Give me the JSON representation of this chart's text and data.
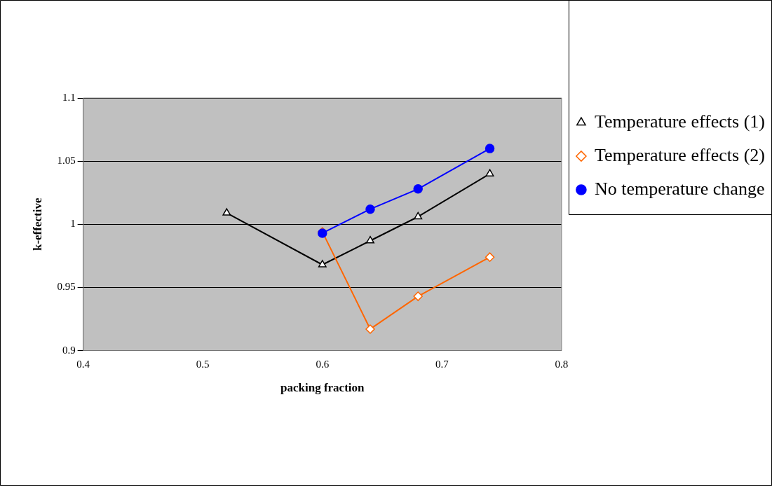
{
  "chart_data": {
    "type": "line",
    "xlabel": "packing fraction",
    "ylabel": "k-effective",
    "xlim": [
      0.4,
      0.8
    ],
    "xticks": [
      0.4,
      0.5,
      0.6,
      0.7,
      0.8
    ],
    "ylim": [
      0.9,
      1.1
    ],
    "yticks": [
      0.9,
      0.95,
      1,
      1.05,
      1.1
    ],
    "grid": "y",
    "legend": "top right",
    "line_style": "solid",
    "series": [
      {
        "name": "Temperature effects (1)",
        "color": "#000000",
        "marker": "triangle",
        "x": [
          0.52,
          0.6,
          0.64,
          0.68,
          0.74
        ],
        "values": [
          1.009,
          0.968,
          0.987,
          1.006,
          1.04
        ]
      },
      {
        "name": "Temperature effects (2)",
        "color": "#ff6600",
        "marker": "diamond",
        "x": [
          0.6,
          0.64,
          0.68,
          0.74
        ],
        "values": [
          0.994,
          0.917,
          0.943,
          0.974
        ]
      },
      {
        "name": "No temperature change",
        "color": "#0000ff",
        "marker": "circle",
        "x": [
          0.6,
          0.64,
          0.68,
          0.74
        ],
        "values": [
          0.993,
          1.012,
          1.028,
          1.06
        ]
      }
    ]
  }
}
